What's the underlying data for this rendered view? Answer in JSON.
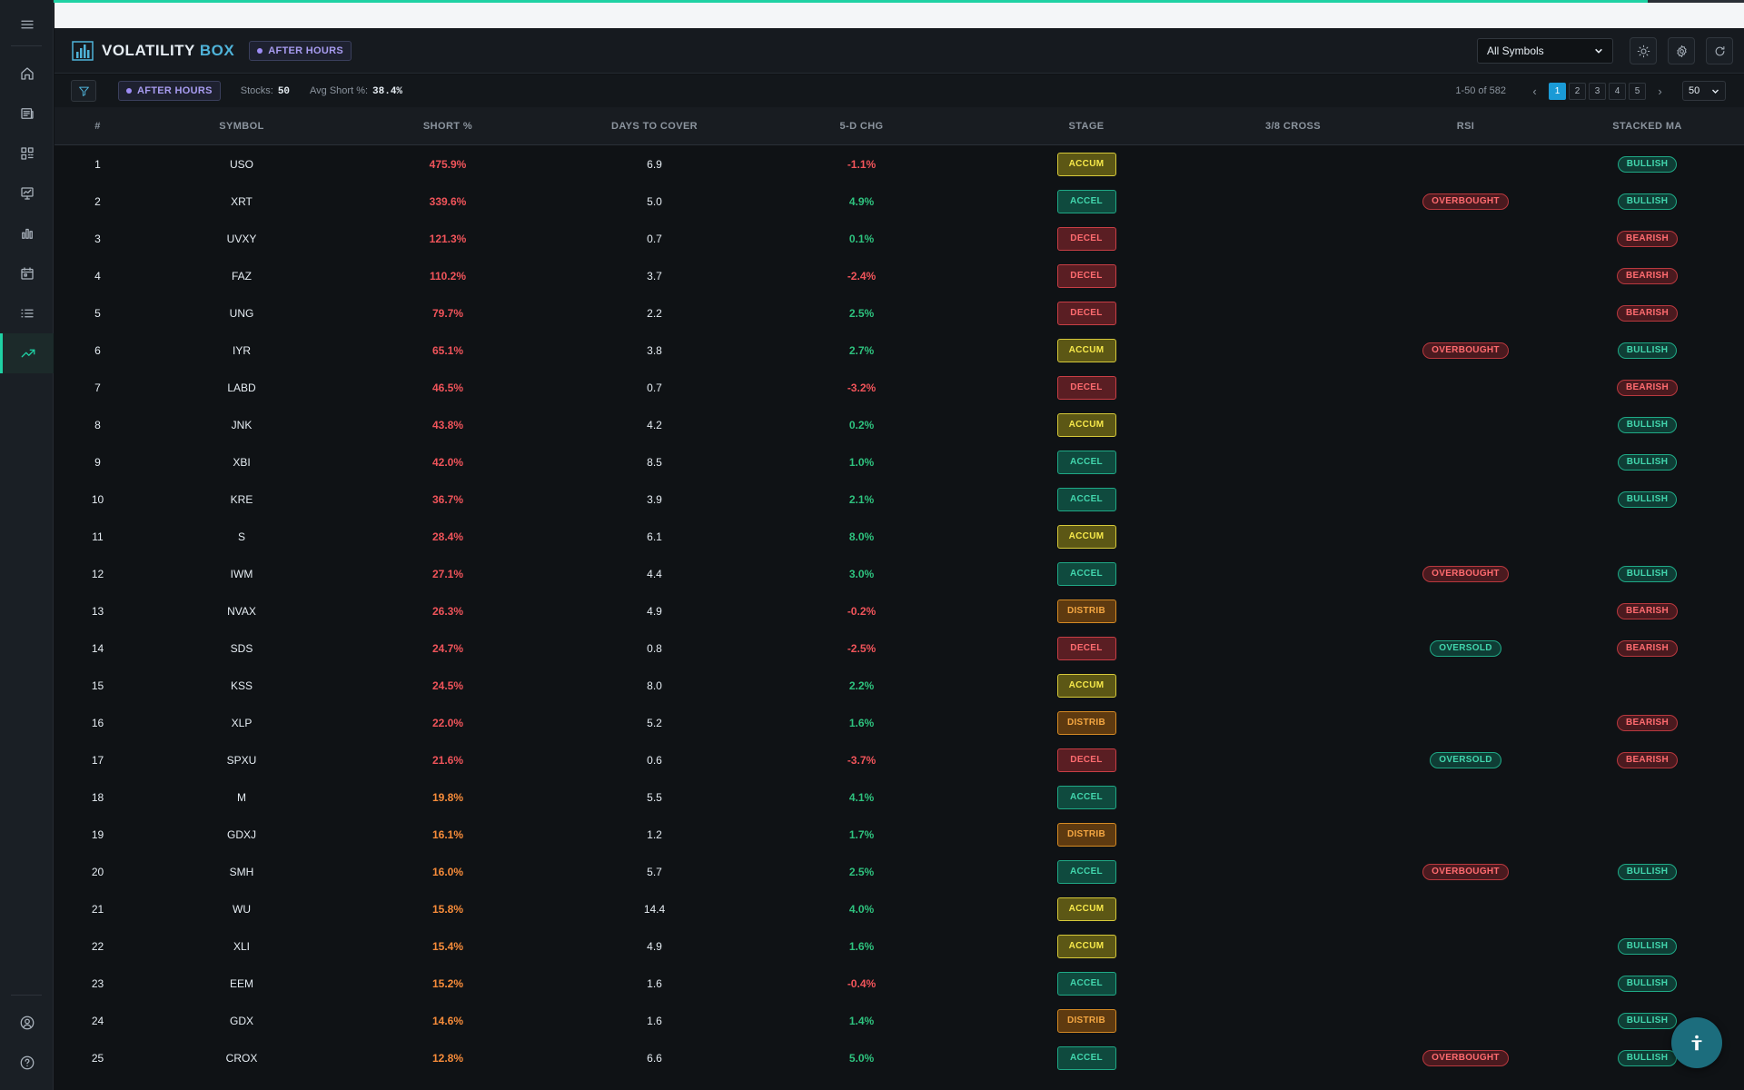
{
  "loading_progress": 0.945,
  "header": {
    "logo_primary": "VOLATILITY",
    "logo_accent": "BOX",
    "session_badge": "AFTER HOURS",
    "symbol_filter": "All Symbols"
  },
  "toolbar": {
    "session_badge": "AFTER HOURS",
    "stocks_label": "Stocks:",
    "stocks_value": "50",
    "avg_short_label": "Avg Short %:",
    "avg_short_value": "38.4%",
    "range_text": "1-50 of 582",
    "pages": [
      "1",
      "2",
      "3",
      "4",
      "5"
    ],
    "active_page": "1",
    "prev_label": "‹",
    "next_label": "›",
    "per_page": "50"
  },
  "table": {
    "columns": [
      "#",
      "SYMBOL",
      "SHORT %",
      "DAYS TO COVER",
      "5-D CHG",
      "STAGE",
      "3/8 CROSS",
      "RSI",
      "STACKED MA"
    ],
    "rows": [
      {
        "n": "1",
        "symbol": "USO",
        "short": "475.9%",
        "dtc": "6.9",
        "chg": "-1.1%",
        "stage": "ACCUM",
        "cross": "",
        "rsi": "",
        "ma": "BULLISH"
      },
      {
        "n": "2",
        "symbol": "XRT",
        "short": "339.6%",
        "dtc": "5.0",
        "chg": "4.9%",
        "stage": "ACCEL",
        "cross": "",
        "rsi": "OVERBOUGHT",
        "ma": "BULLISH"
      },
      {
        "n": "3",
        "symbol": "UVXY",
        "short": "121.3%",
        "dtc": "0.7",
        "chg": "0.1%",
        "stage": "DECEL",
        "cross": "",
        "rsi": "",
        "ma": "BEARISH"
      },
      {
        "n": "4",
        "symbol": "FAZ",
        "short": "110.2%",
        "dtc": "3.7",
        "chg": "-2.4%",
        "stage": "DECEL",
        "cross": "",
        "rsi": "",
        "ma": "BEARISH"
      },
      {
        "n": "5",
        "symbol": "UNG",
        "short": "79.7%",
        "dtc": "2.2",
        "chg": "2.5%",
        "stage": "DECEL",
        "cross": "",
        "rsi": "",
        "ma": "BEARISH"
      },
      {
        "n": "6",
        "symbol": "IYR",
        "short": "65.1%",
        "dtc": "3.8",
        "chg": "2.7%",
        "stage": "ACCUM",
        "cross": "",
        "rsi": "OVERBOUGHT",
        "ma": "BULLISH"
      },
      {
        "n": "7",
        "symbol": "LABD",
        "short": "46.5%",
        "dtc": "0.7",
        "chg": "-3.2%",
        "stage": "DECEL",
        "cross": "",
        "rsi": "",
        "ma": "BEARISH"
      },
      {
        "n": "8",
        "symbol": "JNK",
        "short": "43.8%",
        "dtc": "4.2",
        "chg": "0.2%",
        "stage": "ACCUM",
        "cross": "",
        "rsi": "",
        "ma": "BULLISH"
      },
      {
        "n": "9",
        "symbol": "XBI",
        "short": "42.0%",
        "dtc": "8.5",
        "chg": "1.0%",
        "stage": "ACCEL",
        "cross": "",
        "rsi": "",
        "ma": "BULLISH"
      },
      {
        "n": "10",
        "symbol": "KRE",
        "short": "36.7%",
        "dtc": "3.9",
        "chg": "2.1%",
        "stage": "ACCEL",
        "cross": "",
        "rsi": "",
        "ma": "BULLISH"
      },
      {
        "n": "11",
        "symbol": "S",
        "short": "28.4%",
        "dtc": "6.1",
        "chg": "8.0%",
        "stage": "ACCUM",
        "cross": "",
        "rsi": "",
        "ma": ""
      },
      {
        "n": "12",
        "symbol": "IWM",
        "short": "27.1%",
        "dtc": "4.4",
        "chg": "3.0%",
        "stage": "ACCEL",
        "cross": "",
        "rsi": "OVERBOUGHT",
        "ma": "BULLISH"
      },
      {
        "n": "13",
        "symbol": "NVAX",
        "short": "26.3%",
        "dtc": "4.9",
        "chg": "-0.2%",
        "stage": "DISTRIB",
        "cross": "",
        "rsi": "",
        "ma": "BEARISH"
      },
      {
        "n": "14",
        "symbol": "SDS",
        "short": "24.7%",
        "dtc": "0.8",
        "chg": "-2.5%",
        "stage": "DECEL",
        "cross": "",
        "rsi": "OVERSOLD",
        "ma": "BEARISH"
      },
      {
        "n": "15",
        "symbol": "KSS",
        "short": "24.5%",
        "dtc": "8.0",
        "chg": "2.2%",
        "stage": "ACCUM",
        "cross": "",
        "rsi": "",
        "ma": ""
      },
      {
        "n": "16",
        "symbol": "XLP",
        "short": "22.0%",
        "dtc": "5.2",
        "chg": "1.6%",
        "stage": "DISTRIB",
        "cross": "",
        "rsi": "",
        "ma": "BEARISH"
      },
      {
        "n": "17",
        "symbol": "SPXU",
        "short": "21.6%",
        "dtc": "0.6",
        "chg": "-3.7%",
        "stage": "DECEL",
        "cross": "",
        "rsi": "OVERSOLD",
        "ma": "BEARISH"
      },
      {
        "n": "18",
        "symbol": "M",
        "short": "19.8%",
        "dtc": "5.5",
        "chg": "4.1%",
        "stage": "ACCEL",
        "cross": "",
        "rsi": "",
        "ma": ""
      },
      {
        "n": "19",
        "symbol": "GDXJ",
        "short": "16.1%",
        "dtc": "1.2",
        "chg": "1.7%",
        "stage": "DISTRIB",
        "cross": "",
        "rsi": "",
        "ma": ""
      },
      {
        "n": "20",
        "symbol": "SMH",
        "short": "16.0%",
        "dtc": "5.7",
        "chg": "2.5%",
        "stage": "ACCEL",
        "cross": "",
        "rsi": "OVERBOUGHT",
        "ma": "BULLISH"
      },
      {
        "n": "21",
        "symbol": "WU",
        "short": "15.8%",
        "dtc": "14.4",
        "chg": "4.0%",
        "stage": "ACCUM",
        "cross": "",
        "rsi": "",
        "ma": ""
      },
      {
        "n": "22",
        "symbol": "XLI",
        "short": "15.4%",
        "dtc": "4.9",
        "chg": "1.6%",
        "stage": "ACCUM",
        "cross": "",
        "rsi": "",
        "ma": "BULLISH"
      },
      {
        "n": "23",
        "symbol": "EEM",
        "short": "15.2%",
        "dtc": "1.6",
        "chg": "-0.4%",
        "stage": "ACCEL",
        "cross": "",
        "rsi": "",
        "ma": "BULLISH"
      },
      {
        "n": "24",
        "symbol": "GDX",
        "short": "14.6%",
        "dtc": "1.6",
        "chg": "1.4%",
        "stage": "DISTRIB",
        "cross": "",
        "rsi": "",
        "ma": "BULLISH"
      },
      {
        "n": "25",
        "symbol": "CROX",
        "short": "12.8%",
        "dtc": "6.6",
        "chg": "5.0%",
        "stage": "ACCEL",
        "cross": "",
        "rsi": "OVERBOUGHT",
        "ma": "BULLISH"
      }
    ]
  },
  "colors": {
    "accent": "#1fd1a4",
    "brand_blue": "#4fb3d9",
    "short_high": "#f0545a",
    "short_mid": "#f78c3a",
    "positive": "#2ec27e",
    "negative": "#f0545a"
  },
  "icons": {
    "sidebar": [
      "home-icon",
      "news-icon",
      "scanner-icon",
      "chart-board-icon",
      "bar-chart-icon",
      "calendar-icon",
      "list-icon",
      "trend-up-icon"
    ],
    "sidebar_bottom": [
      "user-icon",
      "help-icon"
    ],
    "header": [
      "sun-icon",
      "gear-icon",
      "refresh-icon"
    ],
    "fab": "accessibility-icon"
  }
}
